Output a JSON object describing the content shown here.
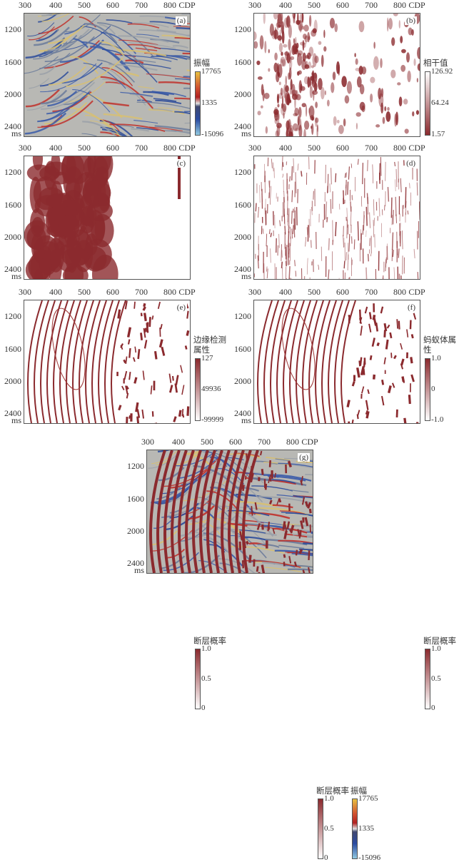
{
  "x_ticks": [
    "300",
    "400",
    "500",
    "600",
    "700",
    "800",
    "CDP"
  ],
  "y_ticks": [
    "1200",
    "1600",
    "2000",
    "2400"
  ],
  "y_unit": "ms",
  "colors": {
    "fault_red": "#8b2a2e",
    "amp_blue": "#2a4a9a",
    "amp_red": "#c0302a",
    "amp_yellow": "#e8c040"
  },
  "panels": [
    {
      "id": "a",
      "tag": "(a)",
      "type": "amplitude",
      "colorbar_title": "振幅",
      "colorbar_labels": [
        "17765",
        "1335",
        "-15096"
      ]
    },
    {
      "id": "b",
      "tag": "(b)",
      "type": "coherence",
      "colorbar_title": "相干值",
      "colorbar_labels": [
        "126.92",
        "64.24",
        "1.57"
      ]
    },
    {
      "id": "c",
      "tag": "(c)",
      "type": "edge",
      "colorbar_title": "边缘检测属性",
      "colorbar_labels": [
        "127",
        "49936",
        "-99999"
      ]
    },
    {
      "id": "d",
      "tag": "(d)",
      "type": "ant",
      "colorbar_title": "蚂蚁体属性",
      "colorbar_labels": [
        "1.0",
        "0",
        "-1.0"
      ]
    },
    {
      "id": "e",
      "tag": "(e)",
      "type": "fault",
      "colorbar_title": "断层概率",
      "colorbar_labels": [
        "1.0",
        "0.5",
        "0"
      ]
    },
    {
      "id": "f",
      "tag": "(f)",
      "type": "fault",
      "colorbar_title": "断层概率",
      "colorbar_labels": [
        "1.0",
        "0.5",
        "0"
      ]
    },
    {
      "id": "g",
      "tag": "(g)",
      "type": "overlay",
      "colorbar_title": "断层概率",
      "colorbar_labels": [
        "1.0",
        "0.5",
        "0"
      ],
      "colorbar2_title": "振幅",
      "colorbar2_labels": [
        "17765",
        "1335",
        "-15096"
      ]
    }
  ]
}
